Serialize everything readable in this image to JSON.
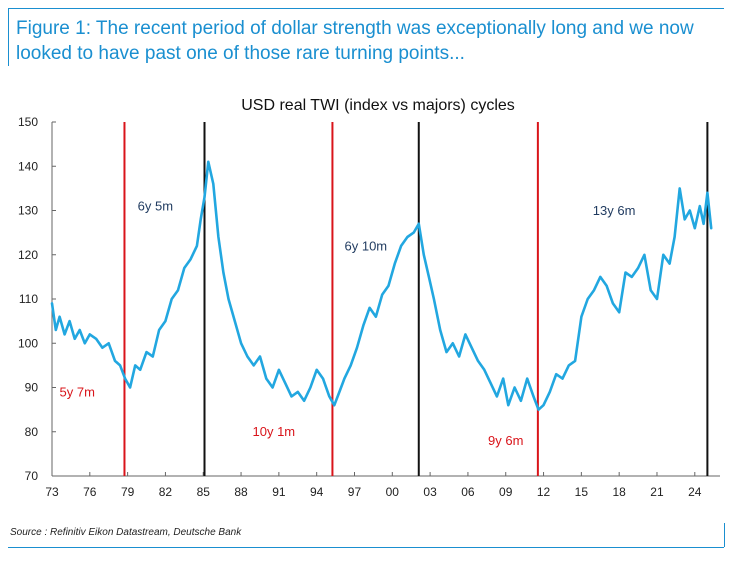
{
  "figure": {
    "caption": "Figure 1: The recent period of dollar strength was exceptionally long and we now looked to have past one of those rare turning points...",
    "source": "Source : Refinitiv Eikon Datastream, Deutsche Bank"
  },
  "colors": {
    "accent": "#1a8fd0",
    "line": "#22a7e0",
    "trough": "#d9141a",
    "peak": "#111111"
  },
  "chart_data": {
    "type": "line",
    "title": "USD real TWI (index vs majors) cycles",
    "xlabel": "",
    "ylabel": "",
    "xlim": [
      1973,
      2026
    ],
    "ylim": [
      70,
      150
    ],
    "yticks": [
      70,
      80,
      90,
      100,
      110,
      120,
      130,
      140,
      150
    ],
    "xticks": [
      {
        "value": 1973,
        "label": "73"
      },
      {
        "value": 1976,
        "label": "76"
      },
      {
        "value": 1979,
        "label": "79"
      },
      {
        "value": 1982,
        "label": "82"
      },
      {
        "value": 1985,
        "label": "85"
      },
      {
        "value": 1988,
        "label": "88"
      },
      {
        "value": 1991,
        "label": "91"
      },
      {
        "value": 1994,
        "label": "94"
      },
      {
        "value": 1997,
        "label": "97"
      },
      {
        "value": 2000,
        "label": "00"
      },
      {
        "value": 2003,
        "label": "03"
      },
      {
        "value": 2006,
        "label": "06"
      },
      {
        "value": 2009,
        "label": "09"
      },
      {
        "value": 2012,
        "label": "12"
      },
      {
        "value": 2015,
        "label": "15"
      },
      {
        "value": 2018,
        "label": "18"
      },
      {
        "value": 2021,
        "label": "21"
      },
      {
        "value": 2024,
        "label": "24"
      }
    ],
    "grid": false,
    "series": [
      {
        "name": "USD real TWI",
        "x": [
          1973.0,
          1973.3,
          1973.6,
          1974.0,
          1974.4,
          1974.8,
          1975.2,
          1975.6,
          1976.0,
          1976.5,
          1977.0,
          1977.5,
          1978.0,
          1978.4,
          1978.8,
          1979.2,
          1979.6,
          1980.0,
          1980.5,
          1981.0,
          1981.5,
          1982.0,
          1982.5,
          1983.0,
          1983.5,
          1984.0,
          1984.5,
          1984.8,
          1985.1,
          1985.4,
          1985.8,
          1986.2,
          1986.6,
          1987.0,
          1987.5,
          1988.0,
          1988.5,
          1989.0,
          1989.5,
          1990.0,
          1990.5,
          1991.0,
          1991.5,
          1992.0,
          1992.5,
          1993.0,
          1993.5,
          1994.0,
          1994.5,
          1995.0,
          1995.4,
          1995.8,
          1996.2,
          1996.7,
          1997.2,
          1997.7,
          1998.2,
          1998.7,
          1999.2,
          1999.7,
          2000.2,
          2000.7,
          2001.2,
          2001.7,
          2002.1,
          2002.5,
          2002.9,
          2003.3,
          2003.8,
          2004.3,
          2004.8,
          2005.3,
          2005.8,
          2006.3,
          2006.8,
          2007.3,
          2007.8,
          2008.3,
          2008.8,
          2009.2,
          2009.7,
          2010.2,
          2010.7,
          2011.2,
          2011.6,
          2012.0,
          2012.5,
          2013.0,
          2013.5,
          2014.0,
          2014.5,
          2015.0,
          2015.5,
          2016.0,
          2016.5,
          2017.0,
          2017.5,
          2018.0,
          2018.5,
          2019.0,
          2019.5,
          2020.0,
          2020.5,
          2021.0,
          2021.5,
          2022.0,
          2022.4,
          2022.8,
          2023.2,
          2023.6,
          2024.0,
          2024.4,
          2024.7,
          2025.0,
          2025.3
        ],
        "y": [
          109,
          103,
          106,
          102,
          105,
          101,
          103,
          100,
          102,
          101,
          99,
          100,
          96,
          95,
          92,
          90,
          95,
          94,
          98,
          97,
          103,
          105,
          110,
          112,
          117,
          119,
          122,
          128,
          133,
          141,
          136,
          124,
          116,
          110,
          105,
          100,
          97,
          95,
          97,
          92,
          90,
          94,
          91,
          88,
          89,
          87,
          90,
          94,
          92,
          88,
          86,
          89,
          92,
          95,
          99,
          104,
          108,
          106,
          111,
          113,
          118,
          122,
          124,
          125,
          127,
          120,
          115,
          110,
          103,
          98,
          100,
          97,
          102,
          99,
          96,
          94,
          91,
          88,
          92,
          86,
          90,
          87,
          92,
          88,
          85,
          86,
          89,
          93,
          92,
          95,
          96,
          106,
          110,
          112,
          115,
          113,
          109,
          107,
          116,
          115,
          117,
          120,
          112,
          110,
          120,
          118,
          124,
          135,
          128,
          130,
          126,
          131,
          127,
          134,
          126
        ]
      }
    ],
    "vertical_markers": [
      {
        "x": 1978.75,
        "kind": "trough"
      },
      {
        "x": 1985.1,
        "kind": "peak"
      },
      {
        "x": 1995.25,
        "kind": "trough"
      },
      {
        "x": 2002.1,
        "kind": "peak"
      },
      {
        "x": 2011.55,
        "kind": "trough"
      },
      {
        "x": 2025.0,
        "kind": "peak"
      }
    ],
    "annotations": [
      {
        "text": "5y 7m",
        "x": 1975.0,
        "y": 88,
        "kind": "trough"
      },
      {
        "text": "6y 5m",
        "x": 1981.2,
        "y": 130,
        "kind": "peak"
      },
      {
        "text": "10y 1m",
        "x": 1990.6,
        "y": 79,
        "kind": "trough"
      },
      {
        "text": "6y 10m",
        "x": 1997.9,
        "y": 121,
        "kind": "peak"
      },
      {
        "text": "9y 6m",
        "x": 2009.0,
        "y": 77,
        "kind": "trough"
      },
      {
        "text": "13y 6m",
        "x": 2017.6,
        "y": 129,
        "kind": "peak"
      }
    ]
  }
}
